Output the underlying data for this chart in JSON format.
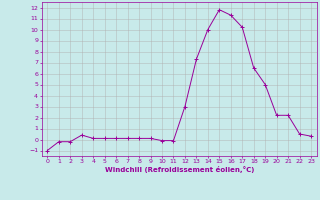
{
  "x": [
    0,
    1,
    2,
    3,
    4,
    5,
    6,
    7,
    8,
    9,
    10,
    11,
    12,
    13,
    14,
    15,
    16,
    17,
    18,
    19,
    20,
    21,
    22,
    23
  ],
  "y": [
    -1,
    -0.2,
    -0.2,
    0.4,
    0.1,
    0.1,
    0.1,
    0.1,
    0.1,
    0.1,
    -0.1,
    -0.1,
    3.0,
    7.3,
    10.0,
    11.8,
    11.3,
    10.2,
    6.5,
    5.0,
    2.2,
    2.2,
    0.5,
    0.3
  ],
  "line_color": "#990099",
  "marker": "+",
  "marker_color": "#990099",
  "bg_color": "#c8eaea",
  "grid_color": "#b0b0b0",
  "xlabel": "Windchill (Refroidissement éolien,°C)",
  "tick_color": "#990099",
  "xlim": [
    -0.5,
    23.5
  ],
  "ylim": [
    -1.5,
    12.5
  ],
  "yticks": [
    -1,
    0,
    1,
    2,
    3,
    4,
    5,
    6,
    7,
    8,
    9,
    10,
    11,
    12
  ],
  "xticks": [
    0,
    1,
    2,
    3,
    4,
    5,
    6,
    7,
    8,
    9,
    10,
    11,
    12,
    13,
    14,
    15,
    16,
    17,
    18,
    19,
    20,
    21,
    22,
    23
  ],
  "figsize": [
    3.2,
    2.0
  ],
  "dpi": 100
}
